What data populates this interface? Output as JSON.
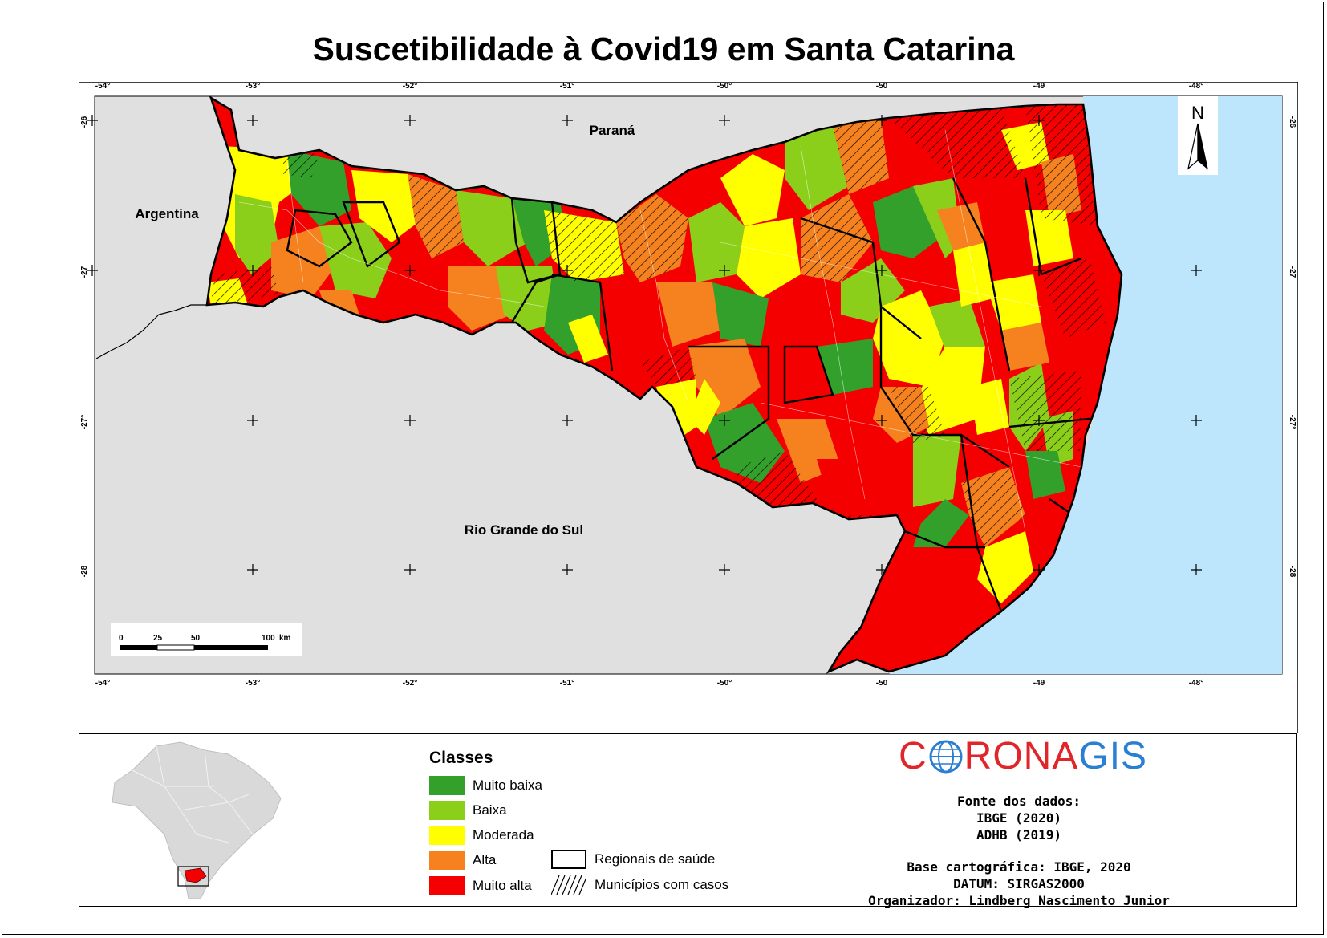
{
  "title": "Suscetibilidade à Covid19 em Santa Catarina",
  "map": {
    "neighbors": {
      "parana": "Paraná",
      "argentina": "Argentina",
      "rio_grande_do_sul": "Rio Grande do Sul"
    },
    "north_arrow_label": "N",
    "longitude_labels": [
      "-54°",
      "-53°",
      "-52°",
      "-51°",
      "-50°",
      "-50",
      "-49",
      "-48°"
    ],
    "latitude_labels": [
      "-26",
      "-27",
      "-27°",
      "-28"
    ],
    "scale_bar": {
      "labels": [
        "0",
        "25",
        "50",
        "100"
      ],
      "unit": "km"
    },
    "colors": {
      "muito_baixa": "#33a02c",
      "baixa": "#8ccf1a",
      "moderada": "#ffff00",
      "alta": "#f5821f",
      "muito_alta": "#f40000",
      "ocean": "#bde5fb",
      "land_neighbor": "#e0e0e0"
    }
  },
  "legend": {
    "title": "Classes",
    "classes": [
      {
        "label": "Muito baixa",
        "color": "#33a02c"
      },
      {
        "label": "Baixa",
        "color": "#8ccf1a"
      },
      {
        "label": "Moderada",
        "color": "#ffff00"
      },
      {
        "label": "Alta",
        "color": "#f5821f"
      },
      {
        "label": "Muito alta",
        "color": "#f40000"
      }
    ],
    "symbols": {
      "regionais": "Regionais de saúde",
      "municipios": "Municípios com casos"
    }
  },
  "logo": {
    "first": "C",
    "second": "RONA",
    "third": "GIS"
  },
  "source": {
    "lines1": [
      "Fonte dos dados:",
      "IBGE (2020)",
      "ADHB (2019)"
    ],
    "lines2": [
      "Base cartográfica: IBGE, 2020",
      "DATUM: SIRGAS2000",
      "Organizador: Lindberg Nascimento Junior"
    ]
  }
}
